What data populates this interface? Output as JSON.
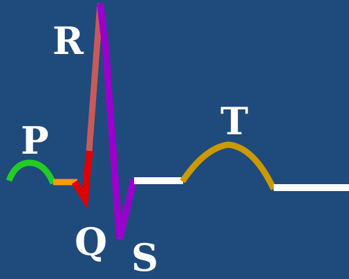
{
  "labels": {
    "p": "P",
    "q": "Q",
    "r": "R",
    "s": "S",
    "t": "T"
  },
  "colors": {
    "background": "#1f4a7c",
    "p_wave": "#22cc22",
    "pr_segment": "#ff9900",
    "q_wave": "#dd0000",
    "r_upstroke": "#c85a5a",
    "r_downstroke_s": "#9900cc",
    "st_segment": "#ffffff",
    "t_wave": "#cc9900",
    "baseline_after_t": "#ffffff"
  }
}
